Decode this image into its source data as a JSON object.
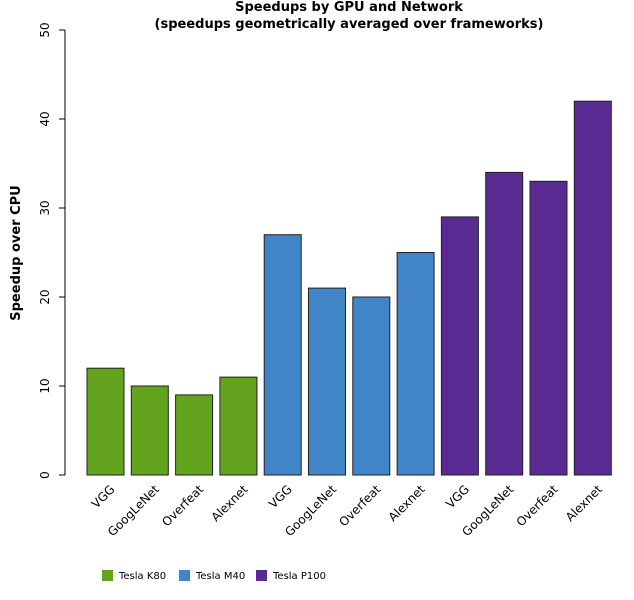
{
  "chart_data": {
    "type": "bar",
    "title": "Speedups by GPU and Network",
    "subtitle": "(speedups geometrically averaged over frameworks)",
    "y_label": "Speedup over CPU",
    "categories": [
      "VGG",
      "GoogLeNet",
      "Overfeat",
      "Alexnet",
      "VGG",
      "GoogLeNet",
      "Overfeat",
      "Alexnet",
      "VGG",
      "GoogLeNet",
      "Overfeat",
      "Alexnet"
    ],
    "series": [
      {
        "name": "Tesla K80",
        "color": "#63a31e",
        "values": [
          12,
          10,
          9,
          11,
          null,
          null,
          null,
          null,
          null,
          null,
          null,
          null
        ]
      },
      {
        "name": "Tesla M40",
        "color": "#4184c8",
        "values": [
          null,
          null,
          null,
          null,
          27,
          21,
          20,
          25,
          null,
          null,
          null,
          null
        ]
      },
      {
        "name": "Tesla P100",
        "color": "#592a91",
        "values": [
          null,
          null,
          null,
          null,
          null,
          null,
          null,
          null,
          29,
          34,
          33,
          42
        ]
      }
    ],
    "ylim": [
      0,
      50
    ],
    "yticks": [
      0,
      10,
      20,
      30,
      40,
      50
    ],
    "grid": false,
    "legend": "bottom"
  }
}
